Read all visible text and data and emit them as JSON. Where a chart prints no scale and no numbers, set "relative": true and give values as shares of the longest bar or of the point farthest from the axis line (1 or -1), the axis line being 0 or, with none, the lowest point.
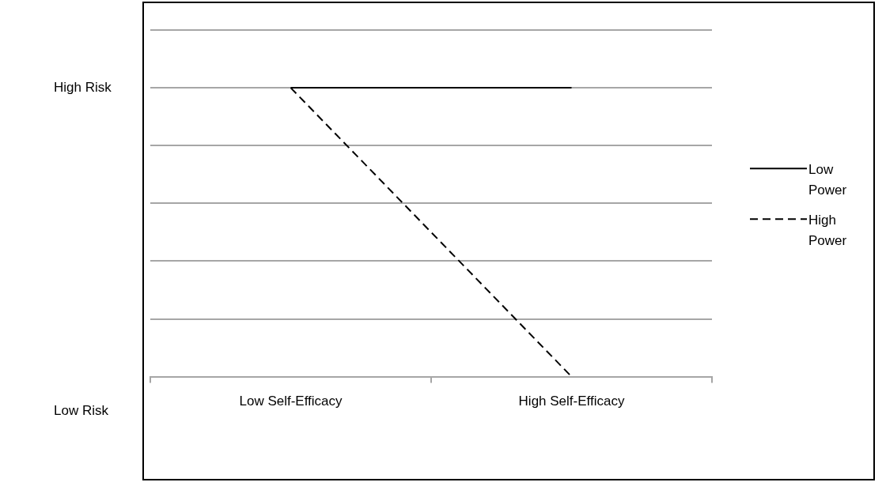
{
  "chart_data": {
    "type": "line",
    "relative": true,
    "categories": [
      "Low Self-Efficacy",
      "High Self-Efficacy"
    ],
    "series": [
      {
        "name": "Low Power",
        "color": "#000000",
        "values": [
          1,
          1
        ],
        "line_style": "solid"
      },
      {
        "name": "High Power",
        "color": "#000000",
        "values": [
          1,
          0
        ],
        "line_style": "dashed"
      }
    ],
    "annotations": [
      "High Risk",
      "Low Risk"
    ],
    "grid": "y",
    "legend": "right",
    "marker": "none"
  }
}
